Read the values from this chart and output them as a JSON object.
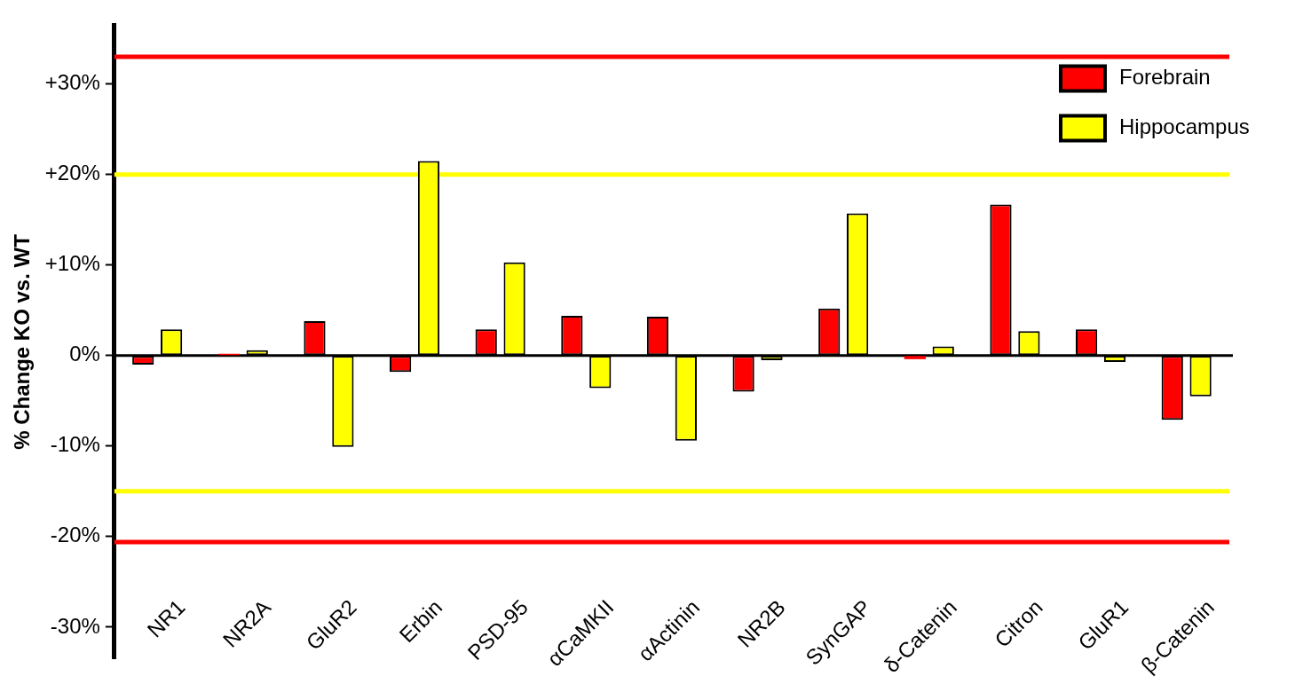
{
  "chart_data": {
    "type": "bar",
    "ylabel": "% Change KO vs. WT",
    "categories": [
      "NR1",
      "NR2A",
      "GluR2",
      "Erbin",
      "PSD-95",
      "αCaMKII",
      "αActinin",
      "NR2B",
      "SynGAP",
      "δ-Catenin",
      "Citron",
      "GluR1",
      "β-Catenin"
    ],
    "series": [
      {
        "name": "Forebrain",
        "color": "#ff0000",
        "values": [
          -1.0,
          0.2,
          3.8,
          -1.8,
          2.9,
          4.4,
          4.3,
          -4.0,
          5.2,
          -0.4,
          16.7,
          2.9,
          -7.1
        ]
      },
      {
        "name": "Hippocampus",
        "color": "#ffff00",
        "values": [
          2.9,
          0.6,
          -10.1,
          21.5,
          10.3,
          -3.6,
          -9.4,
          -0.5,
          15.7,
          1.0,
          2.7,
          -0.7,
          -4.5
        ]
      }
    ],
    "ylim": [
      -33.5,
      36.5
    ],
    "yticks": [
      {
        "value": -30,
        "label": "-30%"
      },
      {
        "value": -20,
        "label": "-20%"
      },
      {
        "value": -10,
        "label": "-10%"
      },
      {
        "value": 0,
        "label": "0%"
      },
      {
        "value": 10,
        "label": "+10%"
      },
      {
        "value": 20,
        "label": "+20%"
      },
      {
        "value": 30,
        "label": "+30%"
      }
    ],
    "ref_lines": [
      {
        "axis": "y",
        "value": 33,
        "color": "#ff0000"
      },
      {
        "axis": "y",
        "value": 20,
        "color": "#ffff00"
      },
      {
        "axis": "y",
        "value": -15,
        "color": "#ffff00"
      },
      {
        "axis": "y",
        "value": -20.6,
        "color": "#ff0000"
      }
    ],
    "legend": "top right",
    "grid": false
  }
}
